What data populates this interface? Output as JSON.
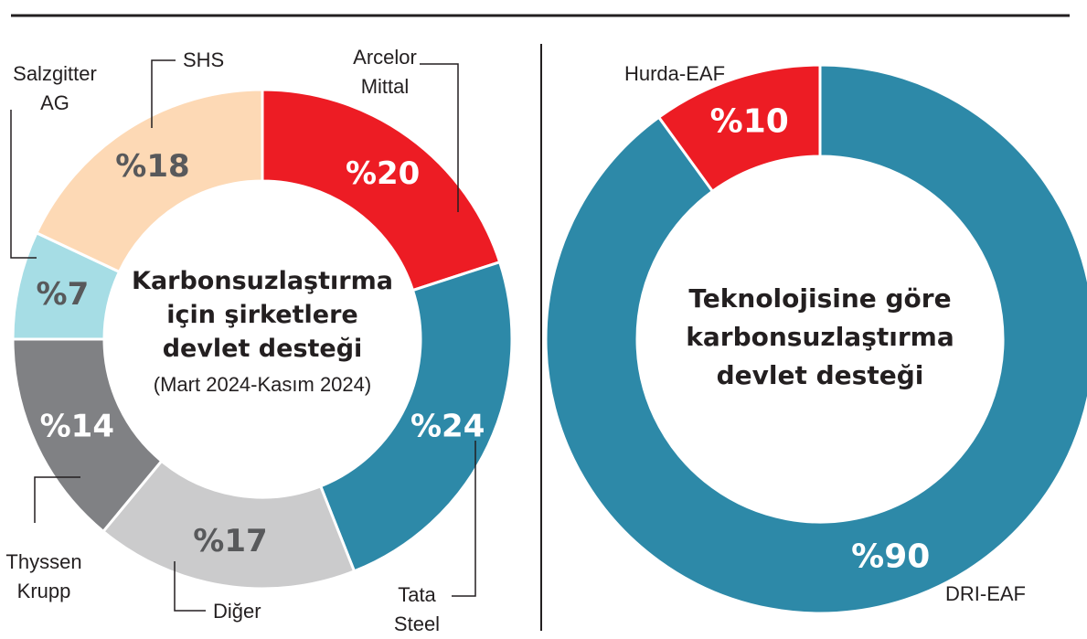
{
  "chart_data": [
    {
      "type": "pie",
      "variant": "donut",
      "title_lines": [
        "Karbonsuzlaştırma",
        "için şirketlere",
        "devlet desteği"
      ],
      "subtitle": "(Mart 2024-Kasım 2024)",
      "slices": [
        {
          "label": "Arcelor Mittal",
          "label_lines": [
            "Arcelor",
            "Mittal"
          ],
          "value": 20,
          "value_label": "%20",
          "color": "#ed1c24",
          "text_color": "#ffffff"
        },
        {
          "label": "Tata Steel",
          "label_lines": [
            "Tata",
            "Steel"
          ],
          "value": 24,
          "value_label": "%24",
          "color": "#2d89a8",
          "text_color": "#ffffff"
        },
        {
          "label": "Diğer",
          "label_lines": [
            "Diğer"
          ],
          "value": 17,
          "value_label": "%17",
          "color": "#cbcbcc",
          "text_color": "#58595b"
        },
        {
          "label": "Thyssen Krupp",
          "label_lines": [
            "Thyssen",
            "Krupp"
          ],
          "value": 14,
          "value_label": "%14",
          "color": "#808184",
          "text_color": "#ffffff"
        },
        {
          "label": "Salzgitter AG",
          "label_lines": [
            "Salzgitter",
            "AG"
          ],
          "value": 7,
          "value_label": "%7",
          "color": "#a6dde5",
          "text_color": "#58595b"
        },
        {
          "label": "SHS",
          "label_lines": [
            "SHS"
          ],
          "value": 18,
          "value_label": "%18",
          "color": "#fdd9b5",
          "text_color": "#58595b"
        }
      ]
    },
    {
      "type": "pie",
      "variant": "donut",
      "title_lines": [
        "Teknolojisine göre",
        "karbonsuzlaştırma",
        "devlet desteği"
      ],
      "slices": [
        {
          "label": "DRI-EAF",
          "value": 90,
          "value_label": "%90",
          "color": "#2d89a8",
          "text_color": "#ffffff"
        },
        {
          "label": "Hurda-EAF",
          "value": 10,
          "value_label": "%10",
          "color": "#ed1c24",
          "text_color": "#ffffff"
        }
      ]
    }
  ]
}
